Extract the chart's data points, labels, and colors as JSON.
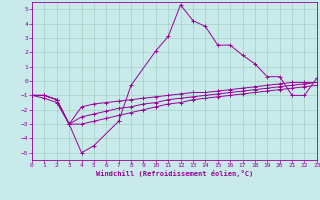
{
  "xlabel": "Windchill (Refroidissement éolien,°C)",
  "xlim": [
    0,
    23
  ],
  "ylim": [
    -5.5,
    5.5
  ],
  "xticks": [
    0,
    1,
    2,
    3,
    4,
    5,
    6,
    7,
    8,
    9,
    10,
    11,
    12,
    13,
    14,
    15,
    16,
    17,
    18,
    19,
    20,
    21,
    22,
    23
  ],
  "yticks": [
    -5,
    -4,
    -3,
    -2,
    -1,
    0,
    1,
    2,
    3,
    4,
    5
  ],
  "bg_color": "#c8eaea",
  "line_color": "#990099",
  "grid_color": "#99ccbb",
  "line1_x": [
    0,
    1,
    2,
    3,
    4,
    5,
    7,
    8,
    10,
    11,
    12,
    13,
    14,
    15,
    16,
    17,
    18,
    19,
    20,
    21,
    22,
    23
  ],
  "line1_y": [
    -1,
    -1.2,
    -1.5,
    -3,
    -5,
    -4.5,
    -2.8,
    -0.3,
    2.1,
    3.1,
    5.3,
    4.2,
    3.8,
    2.5,
    2.5,
    1.8,
    1.2,
    0.3,
    0.3,
    -1,
    -1,
    0.2
  ],
  "line2_x": [
    0,
    1,
    2,
    3,
    4,
    5,
    6,
    7,
    8,
    9,
    10,
    11,
    12,
    13,
    14,
    15,
    16,
    17,
    18,
    19,
    20,
    21,
    22,
    23
  ],
  "line2_y": [
    -1,
    -1,
    -1.3,
    -3,
    -1.8,
    -1.6,
    -1.5,
    -1.4,
    -1.3,
    -1.2,
    -1.1,
    -1.0,
    -0.9,
    -0.8,
    -0.8,
    -0.7,
    -0.6,
    -0.5,
    -0.4,
    -0.3,
    -0.2,
    -0.1,
    -0.1,
    -0.1
  ],
  "line3_x": [
    0,
    1,
    2,
    3,
    4,
    5,
    6,
    7,
    8,
    9,
    10,
    11,
    12,
    13,
    14,
    15,
    16,
    17,
    18,
    19,
    20,
    21,
    22,
    23
  ],
  "line3_y": [
    -1,
    -1,
    -1.3,
    -3,
    -2.5,
    -2.3,
    -2.1,
    -1.9,
    -1.8,
    -1.6,
    -1.5,
    -1.3,
    -1.2,
    -1.1,
    -1.0,
    -0.9,
    -0.8,
    -0.7,
    -0.6,
    -0.5,
    -0.4,
    -0.3,
    -0.2,
    -0.1
  ],
  "line4_x": [
    0,
    1,
    2,
    3,
    4,
    5,
    6,
    7,
    8,
    9,
    10,
    11,
    12,
    13,
    14,
    15,
    16,
    17,
    18,
    19,
    20,
    21,
    22,
    23
  ],
  "line4_y": [
    -1,
    -1,
    -1.3,
    -3,
    -3.0,
    -2.8,
    -2.6,
    -2.4,
    -2.2,
    -2.0,
    -1.8,
    -1.6,
    -1.5,
    -1.3,
    -1.2,
    -1.1,
    -1.0,
    -0.9,
    -0.8,
    -0.7,
    -0.6,
    -0.5,
    -0.4,
    -0.3
  ]
}
